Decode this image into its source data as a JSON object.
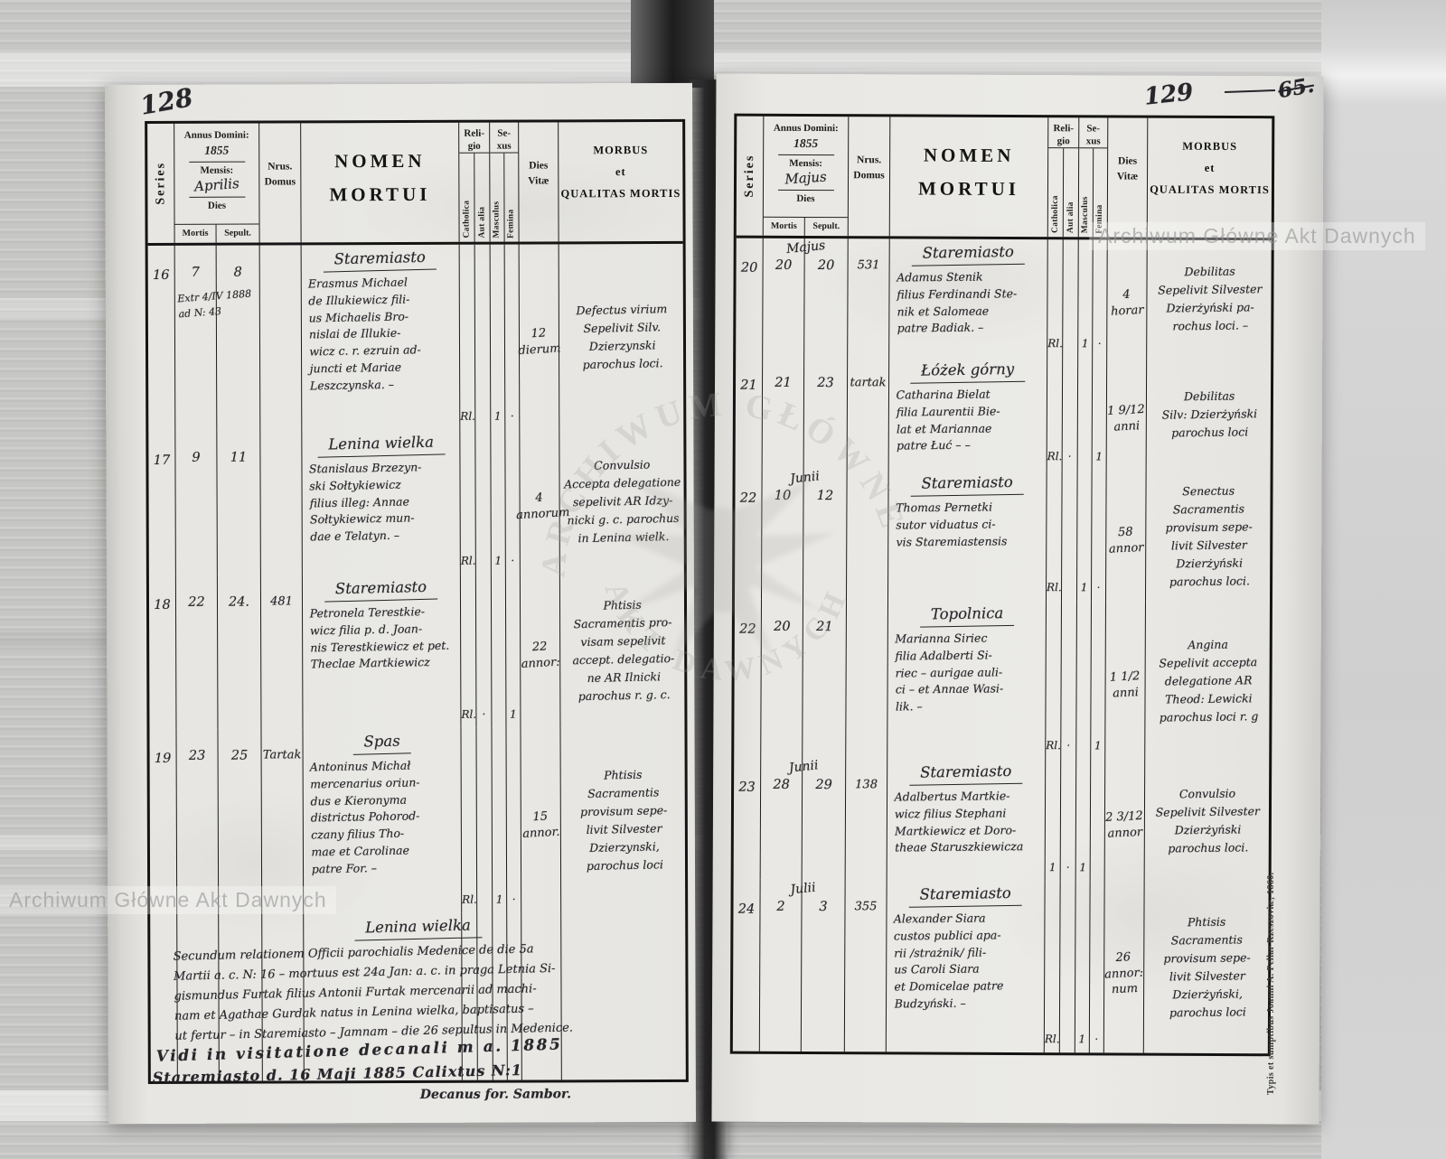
{
  "scan": {
    "left_page_number": "128",
    "right_page_number": "129",
    "corner_scribble": "65.",
    "watermark": "Archiwum Główne Akt Dawnych",
    "printer_note": "Typis et sumptibus Joanni A. Pellar Rzeszoviæ, 1860.",
    "stamp_text_top": "ARCHIWUM GŁÓWNE",
    "stamp_text_bottom": "AKT DAWNYCH"
  },
  "header_labels": {
    "series": "Series",
    "annus_domini": "Annus Domini:",
    "year": "1855",
    "mensis": "Mensis:",
    "dies": "Dies",
    "mortis": "Mortis",
    "sepult": "Sepult.",
    "nrus_domus": "Nrus.\nDomus",
    "nomen_mortui": "NOMEN\nMORTUI",
    "religio": "Reli-\ngio",
    "sexus": "Se-\nxus",
    "catholica": "Catholica",
    "aut_alia": "Aut alia",
    "masculus": "Masculus",
    "femina": "Femina",
    "dies_vitae": "Dies\nVitæ",
    "morbus": "MORBUS\net\nQUALITAS MORTIS"
  },
  "left_page": {
    "month": "Aprilis",
    "entries": [
      {
        "series": "16",
        "month_note": "",
        "mortis": "7",
        "sepult": "8",
        "annotation": "Extr 4/IV 1888\nad N: 43",
        "domus": "",
        "place": "Staremiasto",
        "name": "Erasmus Michael\nde Illukiewicz fili-\nus Michaelis Bro-\nnislai de Illukie-\nwicz c. r. ezruin ad-\njuncti et Mariae\nLeszczynska. –",
        "religio": "Rl.",
        "aut": "",
        "masc": "1",
        "fem": "·",
        "dies_vitae": "12\ndierum",
        "morbus": "Defectus virium\nSepelivit Silv.\nDzierzynski\nparochus loci."
      },
      {
        "series": "17",
        "month_note": "",
        "mortis": "9",
        "sepult": "11",
        "annotation": "",
        "domus": "",
        "place": "Lenina wielka",
        "name": "Stanislaus Brzezyn-\nski Sołtykiewicz\nfilius illeg: Annae\nSołtykiewicz mun-\ndae e Telatyn. –",
        "religio": "Rl.",
        "aut": "",
        "masc": "1",
        "fem": "·",
        "dies_vitae": "4\nannorum",
        "morbus": "Convulsio\nAccepta delegatione\nsepelivit AR Idzy-\nnicki g. c. parochus\nin Lenina wielk."
      },
      {
        "series": "18",
        "month_note": "",
        "mortis": "22",
        "sepult": "24.",
        "annotation": "",
        "domus": "481",
        "place": "Staremiasto",
        "name": "Petronela Terestkie-\nwicz filia p. d. Joan-\nnis Terestkiewicz et pet.\nTheclae Martkiewicz",
        "religio": "Rl.",
        "aut": "·",
        "masc": "",
        "fem": "1",
        "dies_vitae": "22\nannor:",
        "morbus": "Phtisis\nSacramentis pro-\nvisam sepelivit\naccept. delegatio-\nne AR Ilnicki\nparochus r. g. c."
      },
      {
        "series": "19",
        "month_note": "",
        "mortis": "23",
        "sepult": "25",
        "annotation": "",
        "domus": "Tartak",
        "place": "Spas",
        "name": "Antoninus Michał\nmercenarius oriun-\ndus e Kieronyma\ndistrictus Pohorod-\nczany filius Tho-\nmae et Carolinae\npatre For. –",
        "religio": "Rl.",
        "aut": "",
        "masc": "1",
        "fem": "·",
        "dies_vitae": "15\nannor.",
        "morbus": "Phtisis\nSacramentis\nprovisum sepe-\nlivit Silvester\nDzierzynski,\nparochus loci"
      }
    ],
    "note": {
      "place": "Lenina wielka",
      "text": "Secundum relationem Officii parochialis Medenice de die 5a\nMartii a. c. N: 16 – mortuus est 24a Jan: a. c. in praga Letnia Si-\ngismundus Furtak filius Antonii Furtak mercenarii ad machi-\nnam et Agathae Gurdak natus in Lenina wielka, baptisatus –\nut fertur – in Staremiasto – Jamnam – die 26 sepultus in Medenice.",
      "visit1": "Vidi in visitatione decanali m a. 1885",
      "visit2": "Staremiasto d. 16 Maji 1885 Calixtus N:1",
      "visit3": "Decanus for. Sambor."
    }
  },
  "right_page": {
    "month": "Majus",
    "entries": [
      {
        "series": "20",
        "month_note": "Majus",
        "mortis": "20",
        "sepult": "20",
        "annotation": "",
        "domus": "531",
        "place": "Staremiasto",
        "name": "Adamus Stenik\nfilius Ferdinandi Ste-\nnik et Salomeae\npatre Badiak. –",
        "religio": "Rl.",
        "aut": "",
        "masc": "1",
        "fem": "·",
        "dies_vitae": "4\nhorar",
        "morbus": "Debilitas\nSepelivit Silvester\nDzierżyński pa-\nrochus loci. –"
      },
      {
        "series": "21",
        "month_note": "",
        "mortis": "21",
        "sepult": "23",
        "annotation": "",
        "domus": "tartak",
        "place": "Łóżek górny",
        "name": "Catharina Bielat\nfilia Laurentii Bie-\nlat et Mariannae\npatre Łuć –  –",
        "religio": "Rl.",
        "aut": "·",
        "masc": "",
        "fem": "1",
        "dies_vitae": "1 9/12\nanni",
        "morbus": "Debilitas\nSilv: Dzierżyński\nparochus loci"
      },
      {
        "series": "22",
        "month_note": "Junii",
        "mortis": "10",
        "sepult": "12",
        "annotation": "",
        "domus": "",
        "place": "Staremiasto",
        "name": "Thomas Pernetki\nsutor viduatus ci-\nvis Staremiastensis",
        "religio": "Rl.",
        "aut": "",
        "masc": "1",
        "fem": "·",
        "dies_vitae": "58\nannor",
        "morbus": "Senectus\nSacramentis\nprovisum sepe-\nlivit Silvester\nDzierżyński\nparochus loci."
      },
      {
        "series": "22",
        "month_note": "",
        "mortis": "20",
        "sepult": "21",
        "annotation": "",
        "domus": "",
        "place": "Topolnica",
        "name": "Marianna Siriec\nfilia Adalberti Si-\nriec – aurigae auli-\nci – et Annae Wasi-\nlik. –",
        "religio": "Rl.",
        "aut": "·",
        "masc": "",
        "fem": "1",
        "dies_vitae": "1 1/2\nanni",
        "morbus": "Angina\nSepelivit accepta\ndelegatione AR\nTheod: Lewicki\nparochus loci r. g"
      },
      {
        "series": "23",
        "month_note": "Junii",
        "mortis": "28",
        "sepult": "29",
        "annotation": "",
        "domus": "138",
        "place": "Staremiasto",
        "name": "Adalbertus Martkie-\nwicz filius Stephani\nMartkiewicz et Doro-\ntheae Staruszkiewicza",
        "religio": "1",
        "aut": "·",
        "masc": "1",
        "fem": "",
        "dies_vitae": "2 3/12\nannor",
        "morbus": "Convulsio\nSepelivit Silvester\nDzierżyński\nparochus loci."
      },
      {
        "series": "24",
        "month_note": "Julii",
        "mortis": "2",
        "sepult": "3",
        "annotation": "",
        "domus": "355",
        "place": "Staremiasto",
        "name": "Alexander Siara\ncustos publici apa-\nrii /strażnik/ fili-\nus Caroli Siara\net Domicelae patre\nBudzyński. –",
        "religio": "Rl.",
        "aut": "",
        "masc": "1",
        "fem": "·",
        "dies_vitae": "26\nannor:\nnum",
        "morbus": "Phtisis\nSacramentis\nprovisum sepe-\nlivit Silvester\nDzierżyński,\nparochus loci"
      }
    ]
  }
}
